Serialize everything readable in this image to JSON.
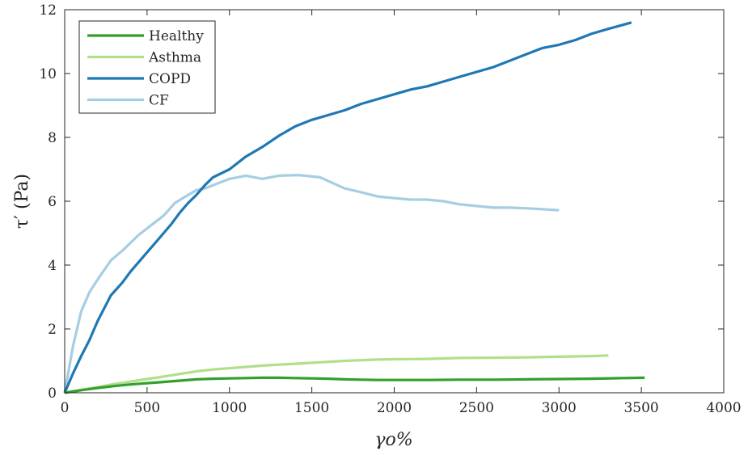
{
  "chart_data": {
    "type": "line",
    "title": "",
    "xlabel": "γo%",
    "ylabel": "τ′ (Pa)",
    "xlim": [
      0,
      4000
    ],
    "ylim": [
      0,
      12
    ],
    "xticks": [
      0,
      500,
      1000,
      1500,
      2000,
      2500,
      3000,
      3500,
      4000
    ],
    "yticks": [
      0,
      2,
      4,
      6,
      8,
      10,
      12
    ],
    "grid": false,
    "legend_position": "top-left",
    "series": [
      {
        "name": "Healthy",
        "color": "#33a02c",
        "x": [
          0,
          100,
          200,
          300,
          400,
          500,
          600,
          700,
          800,
          900,
          1000,
          1100,
          1200,
          1300,
          1400,
          1500,
          1600,
          1700,
          1800,
          1900,
          2000,
          2200,
          2400,
          2600,
          2800,
          3000,
          3200,
          3400,
          3520
        ],
        "y": [
          0,
          0.08,
          0.15,
          0.21,
          0.26,
          0.3,
          0.34,
          0.38,
          0.42,
          0.44,
          0.45,
          0.46,
          0.47,
          0.47,
          0.46,
          0.45,
          0.44,
          0.42,
          0.41,
          0.4,
          0.4,
          0.4,
          0.41,
          0.41,
          0.42,
          0.43,
          0.44,
          0.46,
          0.47
        ]
      },
      {
        "name": "Asthma",
        "color": "#b2df8a",
        "x": [
          0,
          100,
          200,
          300,
          400,
          500,
          600,
          700,
          800,
          900,
          1000,
          1100,
          1200,
          1300,
          1400,
          1500,
          1600,
          1700,
          1800,
          1900,
          2000,
          2200,
          2400,
          2600,
          2800,
          3000,
          3200,
          3300
        ],
        "y": [
          0,
          0.09,
          0.18,
          0.27,
          0.35,
          0.43,
          0.51,
          0.59,
          0.67,
          0.73,
          0.77,
          0.81,
          0.85,
          0.88,
          0.91,
          0.94,
          0.97,
          1.0,
          1.02,
          1.04,
          1.05,
          1.06,
          1.09,
          1.1,
          1.11,
          1.13,
          1.15,
          1.17
        ]
      },
      {
        "name": "COPD",
        "color": "#1f78b4",
        "x": [
          0,
          50,
          100,
          150,
          200,
          280,
          350,
          400,
          450,
          500,
          550,
          600,
          650,
          700,
          750,
          800,
          850,
          900,
          1000,
          1100,
          1200,
          1300,
          1400,
          1500,
          1600,
          1700,
          1800,
          1900,
          2000,
          2100,
          2200,
          2300,
          2400,
          2500,
          2600,
          2700,
          2800,
          2900,
          3000,
          3100,
          3200,
          3300,
          3440
        ],
        "y": [
          0,
          0.6,
          1.15,
          1.65,
          2.25,
          3.05,
          3.45,
          3.8,
          4.1,
          4.4,
          4.7,
          5.0,
          5.3,
          5.65,
          5.95,
          6.2,
          6.5,
          6.75,
          7.0,
          7.4,
          7.7,
          8.05,
          8.35,
          8.55,
          8.7,
          8.85,
          9.05,
          9.2,
          9.35,
          9.5,
          9.6,
          9.75,
          9.9,
          10.05,
          10.2,
          10.4,
          10.6,
          10.8,
          10.9,
          11.05,
          11.25,
          11.4,
          11.6
        ]
      },
      {
        "name": "CF",
        "color": "#a6cee3",
        "x": [
          0,
          50,
          100,
          150,
          200,
          280,
          350,
          400,
          450,
          500,
          550,
          600,
          670,
          750,
          800,
          850,
          900,
          1000,
          1100,
          1200,
          1300,
          1420,
          1550,
          1700,
          1800,
          1900,
          2000,
          2100,
          2200,
          2300,
          2400,
          2500,
          2600,
          2700,
          2800,
          2900,
          3000
        ],
        "y": [
          0,
          1.45,
          2.55,
          3.15,
          3.55,
          4.15,
          4.45,
          4.7,
          4.95,
          5.15,
          5.35,
          5.55,
          5.95,
          6.2,
          6.35,
          6.4,
          6.5,
          6.7,
          6.8,
          6.7,
          6.8,
          6.82,
          6.75,
          6.4,
          6.28,
          6.15,
          6.1,
          6.05,
          6.05,
          6.0,
          5.9,
          5.85,
          5.8,
          5.8,
          5.78,
          5.75,
          5.72
        ]
      }
    ]
  }
}
